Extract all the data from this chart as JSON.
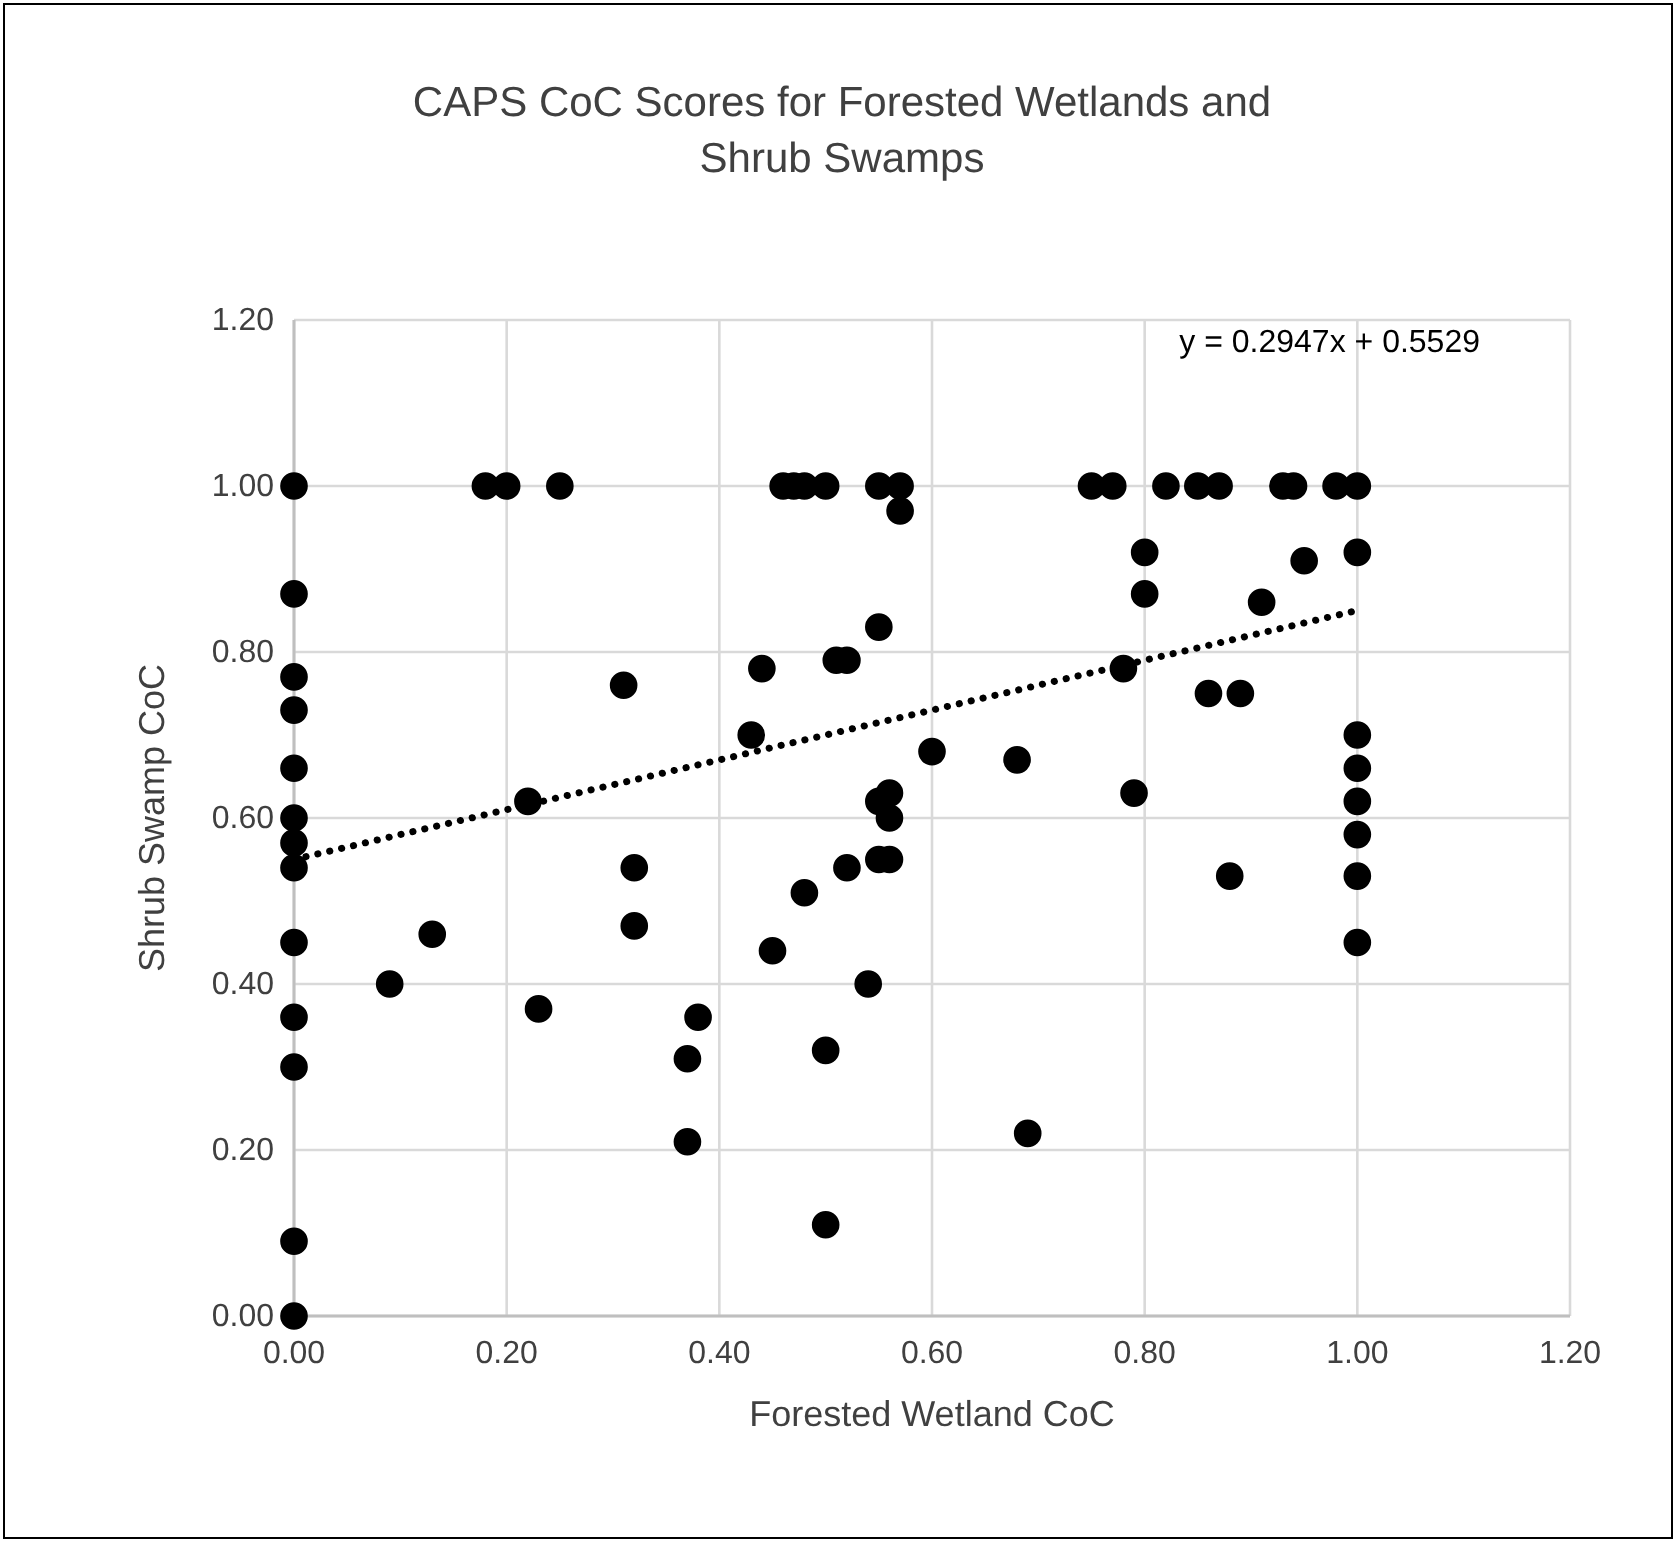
{
  "chart_data": {
    "type": "scatter",
    "title": "CAPS CoC Scores for Forested Wetlands and Shrub Swamps",
    "xlabel": "Forested Wetland CoC",
    "ylabel": "Shrub Swamp CoC",
    "xlim": [
      0,
      1.2
    ],
    "ylim": [
      0,
      1.2
    ],
    "xticks": [
      {
        "value": 0,
        "label": "0.00"
      },
      {
        "value": 0.2,
        "label": "0.20"
      },
      {
        "value": 0.4,
        "label": "0.40"
      },
      {
        "value": 0.6,
        "label": "0.60"
      },
      {
        "value": 0.8,
        "label": "0.80"
      },
      {
        "value": 1,
        "label": "1.00"
      },
      {
        "value": 1.2,
        "label": "1.20"
      }
    ],
    "yticks": [
      {
        "value": 0,
        "label": "0.00"
      },
      {
        "value": 0.2,
        "label": "0.20"
      },
      {
        "value": 0.4,
        "label": "0.40"
      },
      {
        "value": 0.6,
        "label": "0.60"
      },
      {
        "value": 0.8,
        "label": "0.80"
      },
      {
        "value": 1,
        "label": "1.00"
      },
      {
        "value": 1.2,
        "label": "1.20"
      }
    ],
    "grid": true,
    "marker": "circle",
    "annotations": [
      "y = 0.2947x + 0.5529"
    ],
    "series": [
      {
        "color": "#000000",
        "x": [
          0,
          0,
          0,
          0,
          0,
          0,
          0,
          0,
          0,
          0,
          0,
          0,
          0,
          0.09,
          0.13,
          0.18,
          0.2,
          0.25,
          0.22,
          0.23,
          0.31,
          0.32,
          0.32,
          0.37,
          0.37,
          0.38,
          0.43,
          0.44,
          0.45,
          0.46,
          0.47,
          0.48,
          0.5,
          0.48,
          0.5,
          0.5,
          0.51,
          0.52,
          0.52,
          0.54,
          0.55,
          0.57,
          0.57,
          0.55,
          0.55,
          0.56,
          0.55,
          0.56,
          0.56,
          0.6,
          0.68,
          0.69,
          0.75,
          0.77,
          0.78,
          0.79,
          0.8,
          0.8,
          0.82,
          0.85,
          0.87,
          0.86,
          0.89,
          0.88,
          0.91,
          0.93,
          0.94,
          0.95,
          0.98,
          1,
          1,
          1,
          1,
          1,
          1,
          1,
          1
        ],
        "values": [
          1,
          0.87,
          0.77,
          0.73,
          0.66,
          0.6,
          0.57,
          0.54,
          0.45,
          0.36,
          0.3,
          0.09,
          0,
          0.4,
          0.46,
          1,
          1,
          1,
          0.62,
          0.37,
          0.76,
          0.54,
          0.47,
          0.31,
          0.21,
          0.36,
          0.7,
          0.78,
          0.44,
          1,
          1,
          1,
          1,
          0.51,
          0.32,
          0.11,
          0.79,
          0.79,
          0.54,
          0.4,
          1,
          1,
          0.97,
          0.83,
          0.62,
          0.63,
          0.55,
          0.55,
          0.6,
          0.68,
          0.67,
          0.22,
          1,
          1,
          0.78,
          0.63,
          0.92,
          0.87,
          1,
          1,
          1,
          0.75,
          0.75,
          0.53,
          0.86,
          1,
          1,
          0.91,
          1,
          1,
          0.92,
          0.7,
          0.66,
          0.62,
          0.58,
          0.53,
          0.45
        ]
      },
      {
        "type": "line",
        "color": "#000000",
        "line_style": "dotted",
        "marker": "none",
        "x": [
          0,
          1
        ],
        "values": [
          0.55,
          0.85
        ]
      }
    ]
  }
}
